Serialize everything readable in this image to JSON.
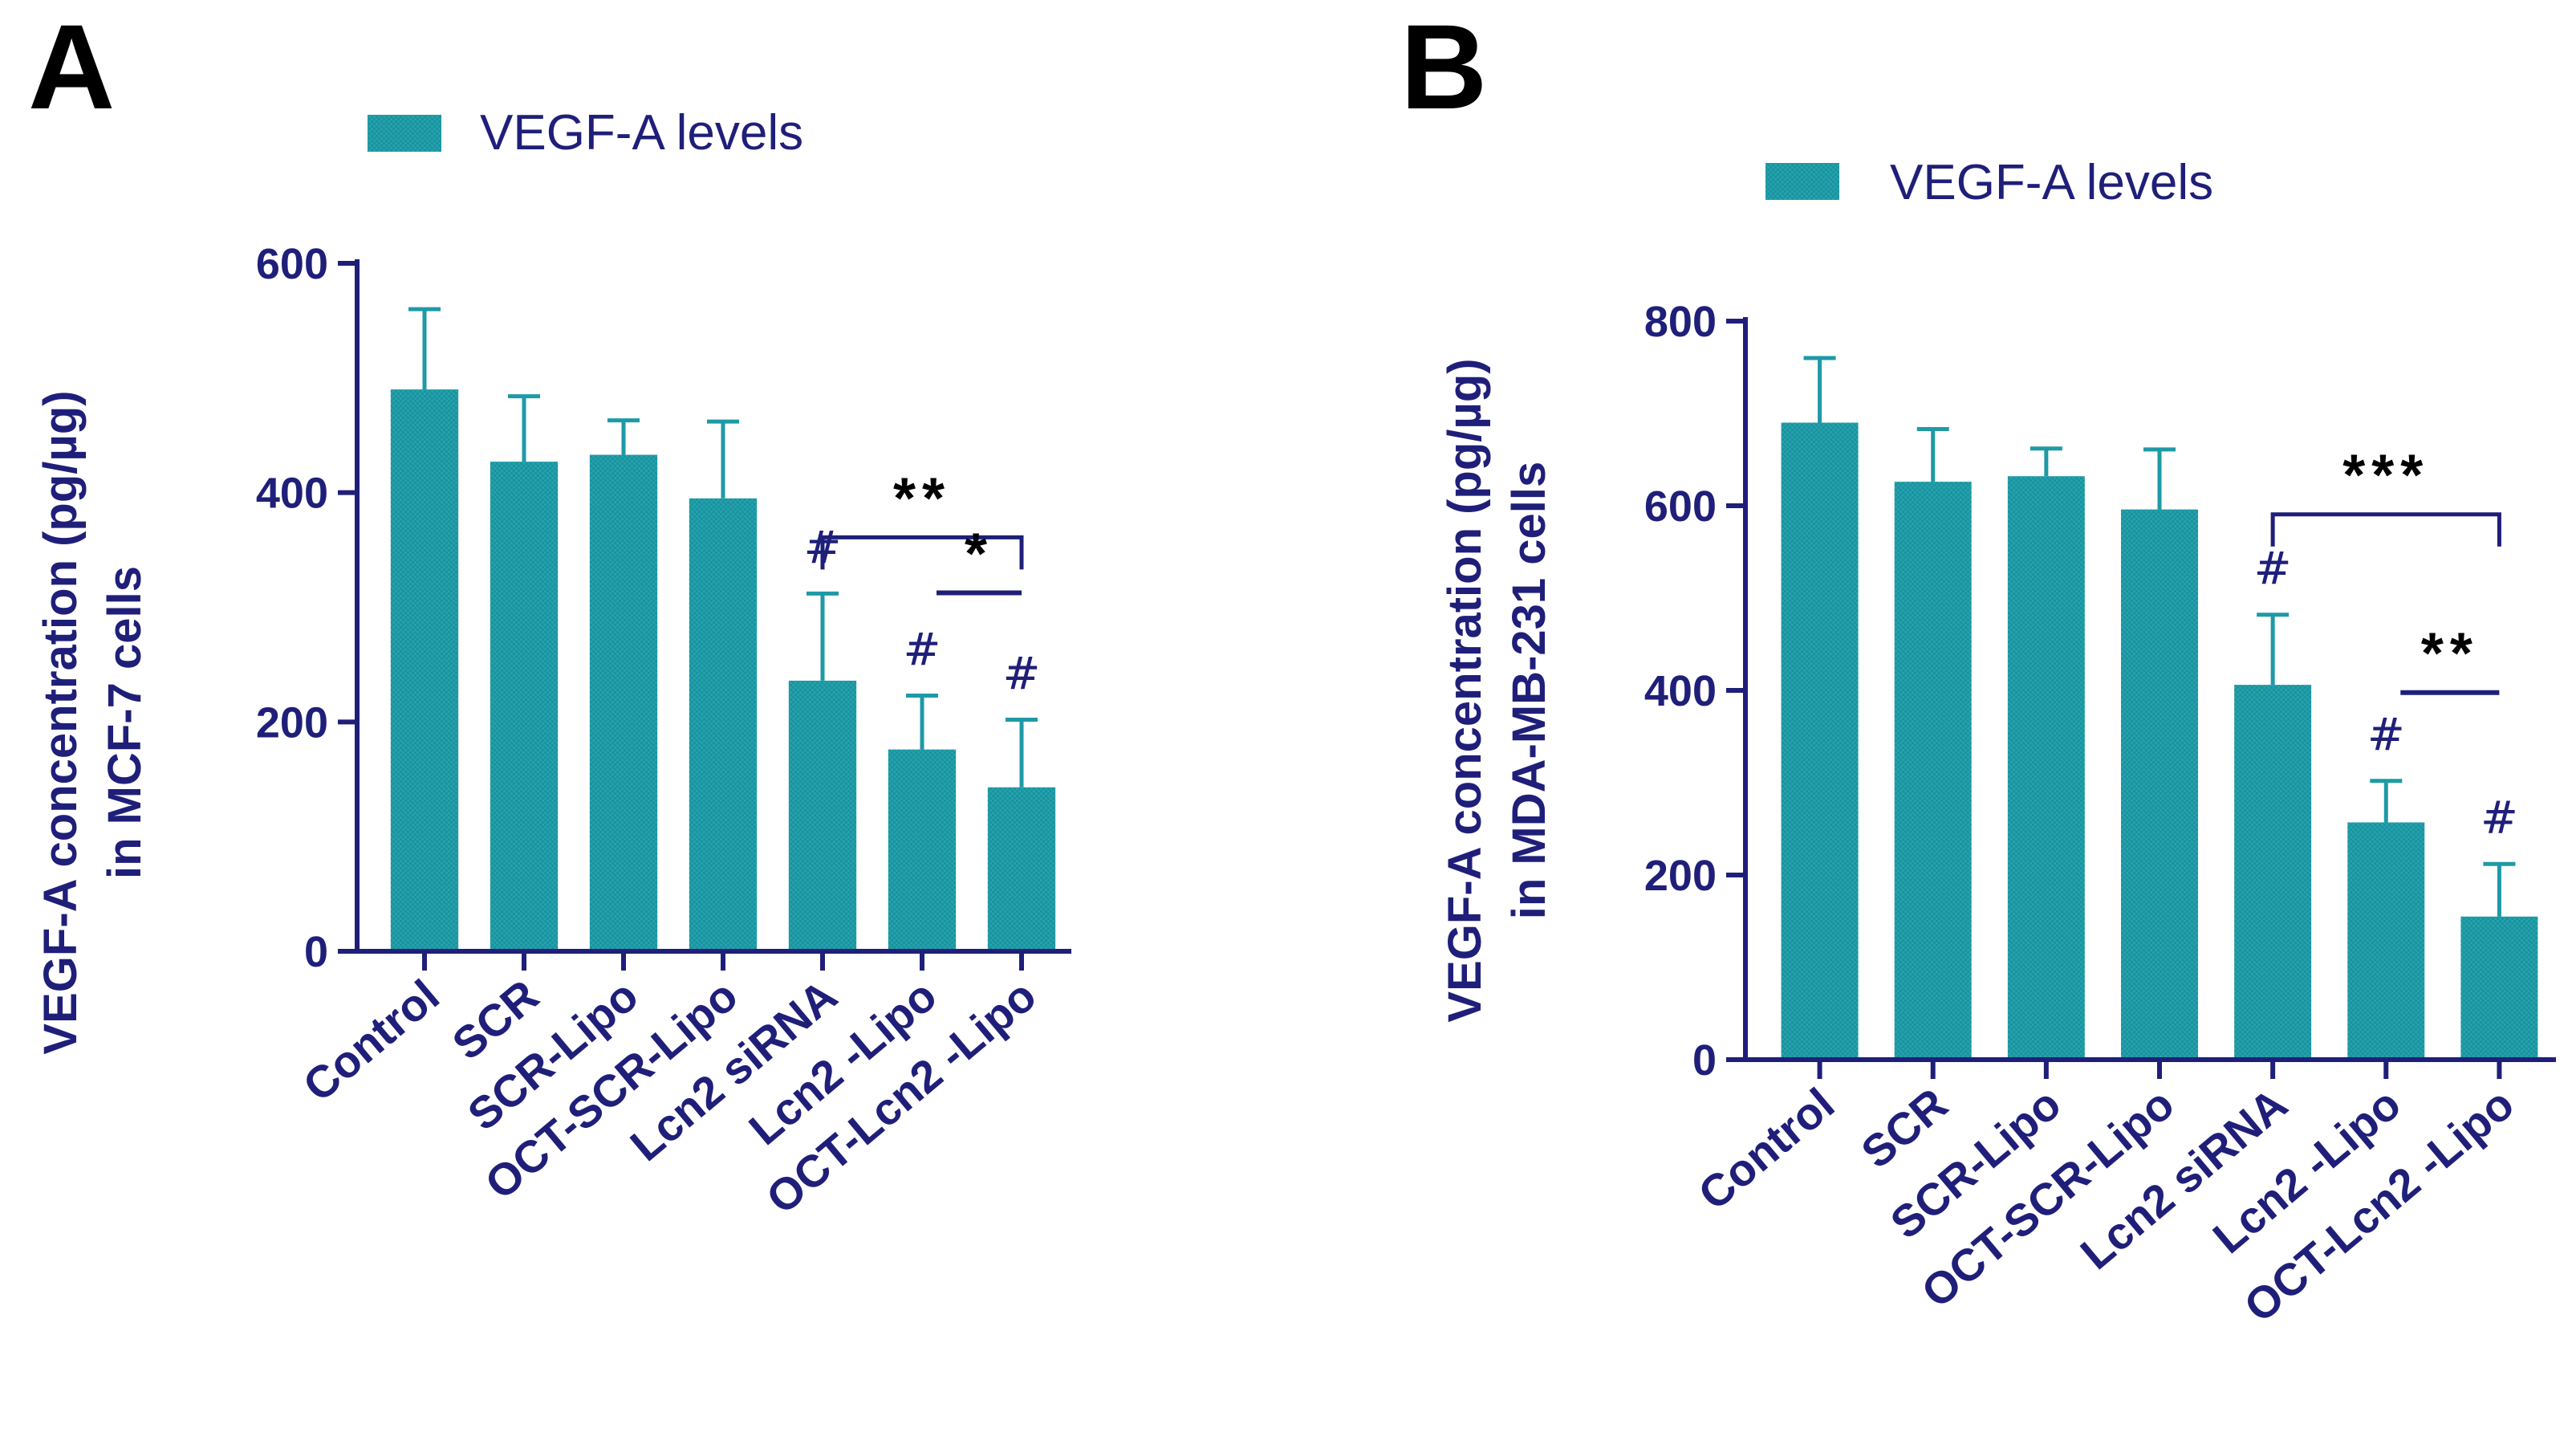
{
  "colors": {
    "bar": "#1e9aa6",
    "axis": "#1f1f7a",
    "text": "#1f1f7a"
  },
  "chart_data": [
    {
      "panel": "A",
      "type": "bar",
      "legend": "VEGF-A levels",
      "ylabel_line1": "VEGF-A concentration (pg/µg)",
      "ylabel_line2": "in MCF-7 cells",
      "categories": [
        "Control",
        "SCR",
        "SCR-Lipo",
        "OCT-SCR-Lipo",
        "Lcn2 siRNA",
        "Lcn2 -Lipo",
        "OCT-Lcn2 -Lipo"
      ],
      "values": [
        490,
        427,
        433,
        395,
        236,
        176,
        143
      ],
      "errors": [
        70,
        57,
        30,
        67,
        76,
        47,
        59
      ],
      "ylim": [
        0,
        600
      ],
      "yticks": [
        0,
        200,
        400,
        600
      ],
      "hash_marks": [
        {
          "category": "Lcn2 siRNA",
          "label": "#"
        },
        {
          "category": "Lcn2 -Lipo",
          "label": "#"
        },
        {
          "category": "OCT-Lcn2 -Lipo",
          "label": "#"
        }
      ],
      "significance": [
        {
          "from": "Lcn2 siRNA",
          "to": "OCT-Lcn2 -Lipo",
          "label": "**",
          "bracket": true
        },
        {
          "from": "Lcn2 -Lipo",
          "to": "OCT-Lcn2 -Lipo",
          "label": "*",
          "bracket": false
        }
      ]
    },
    {
      "panel": "B",
      "type": "bar",
      "legend": "VEGF-A levels",
      "ylabel_line1": "VEGF-A concentration (pg/µg)",
      "ylabel_line2": "in MDA-MB-231 cells",
      "categories": [
        "Control",
        "SCR",
        "SCR-Lipo",
        "OCT-SCR-Lipo",
        "Lcn2 siRNA",
        "Lcn2 -Lipo",
        "OCT-Lcn2 -Lipo"
      ],
      "values": [
        690,
        626,
        632,
        596,
        406,
        257,
        155
      ],
      "errors": [
        70,
        57,
        30,
        65,
        76,
        45,
        57
      ],
      "ylim": [
        0,
        800
      ],
      "yticks": [
        0,
        200,
        400,
        600,
        800
      ],
      "hash_marks": [
        {
          "category": "Lcn2 siRNA",
          "label": "#"
        },
        {
          "category": "Lcn2 -Lipo",
          "label": "#"
        },
        {
          "category": "OCT-Lcn2 -Lipo",
          "label": "#"
        }
      ],
      "significance": [
        {
          "from": "Lcn2 siRNA",
          "to": "OCT-Lcn2 -Lipo",
          "label": "***",
          "bracket": true
        },
        {
          "from": "Lcn2 -Lipo",
          "to": "OCT-Lcn2 -Lipo",
          "label": "**",
          "bracket": false
        }
      ]
    }
  ]
}
